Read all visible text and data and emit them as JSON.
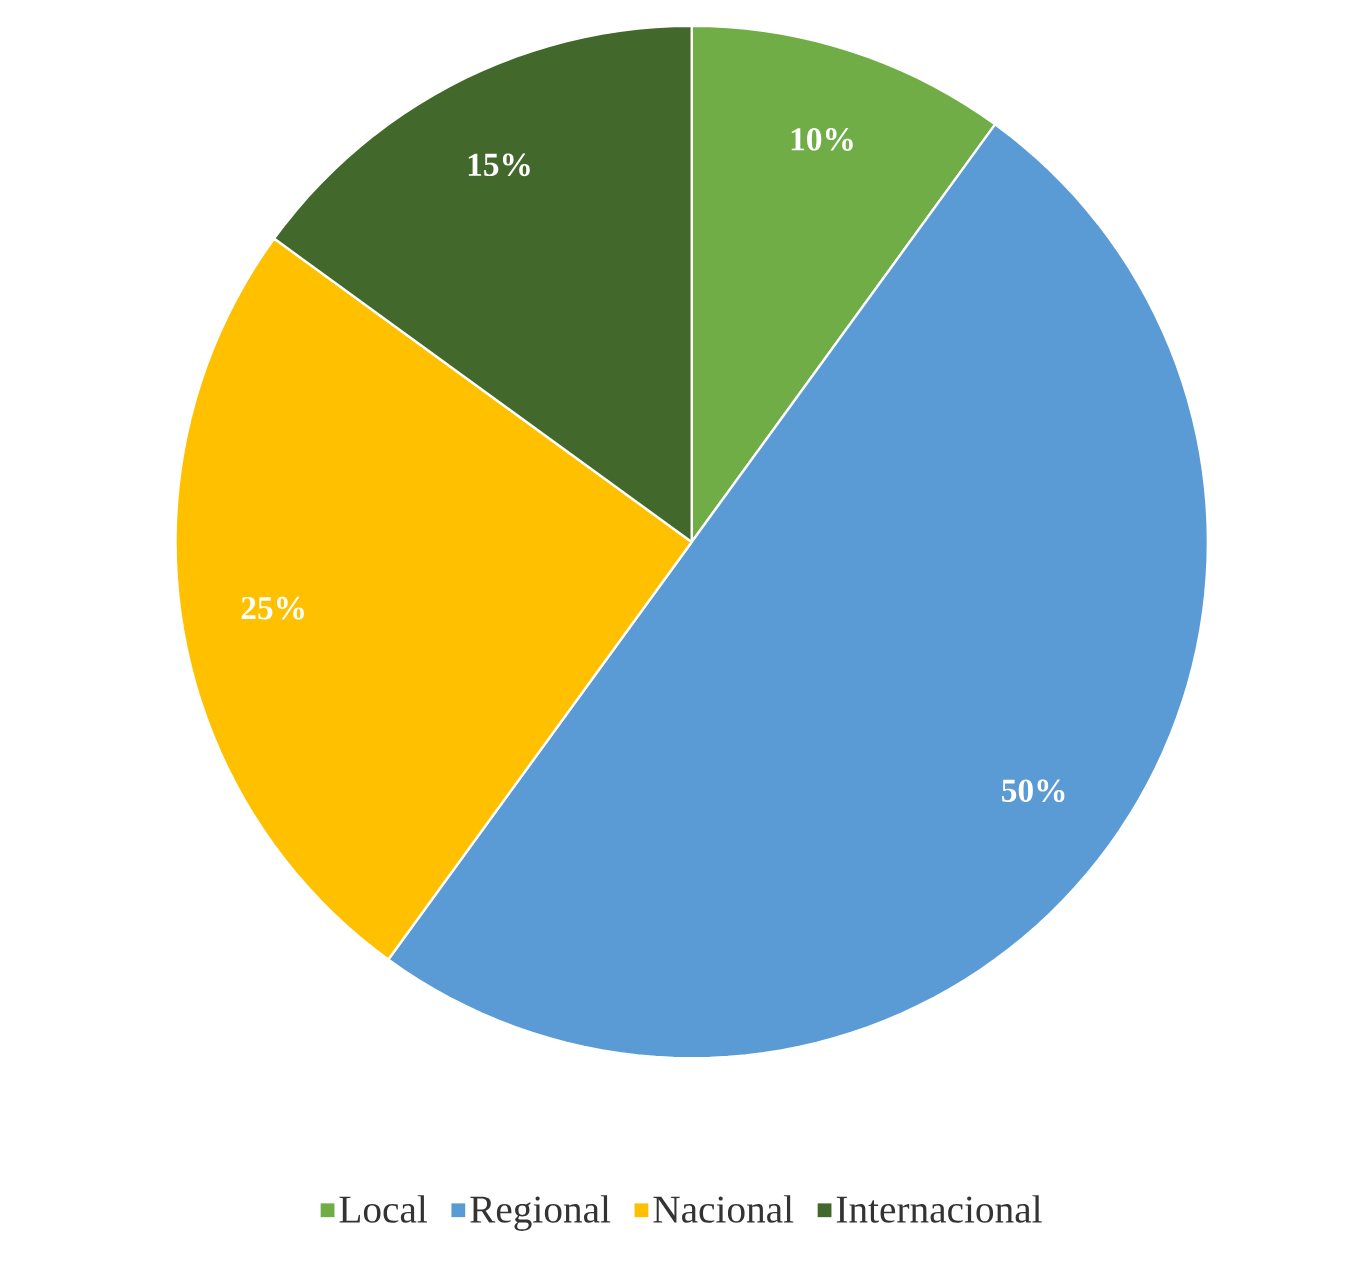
{
  "chart_data": {
    "type": "pie",
    "categories": [
      "Local",
      "Regional",
      "Nacional",
      "Internacional"
    ],
    "values": [
      10,
      50,
      25,
      15
    ],
    "colors": [
      "#70ad47",
      "#5b9bd5",
      "#ffc000",
      "#43682b"
    ],
    "value_labels": [
      "10%",
      "50%",
      "25%",
      "15%"
    ],
    "legend": "bottom"
  }
}
